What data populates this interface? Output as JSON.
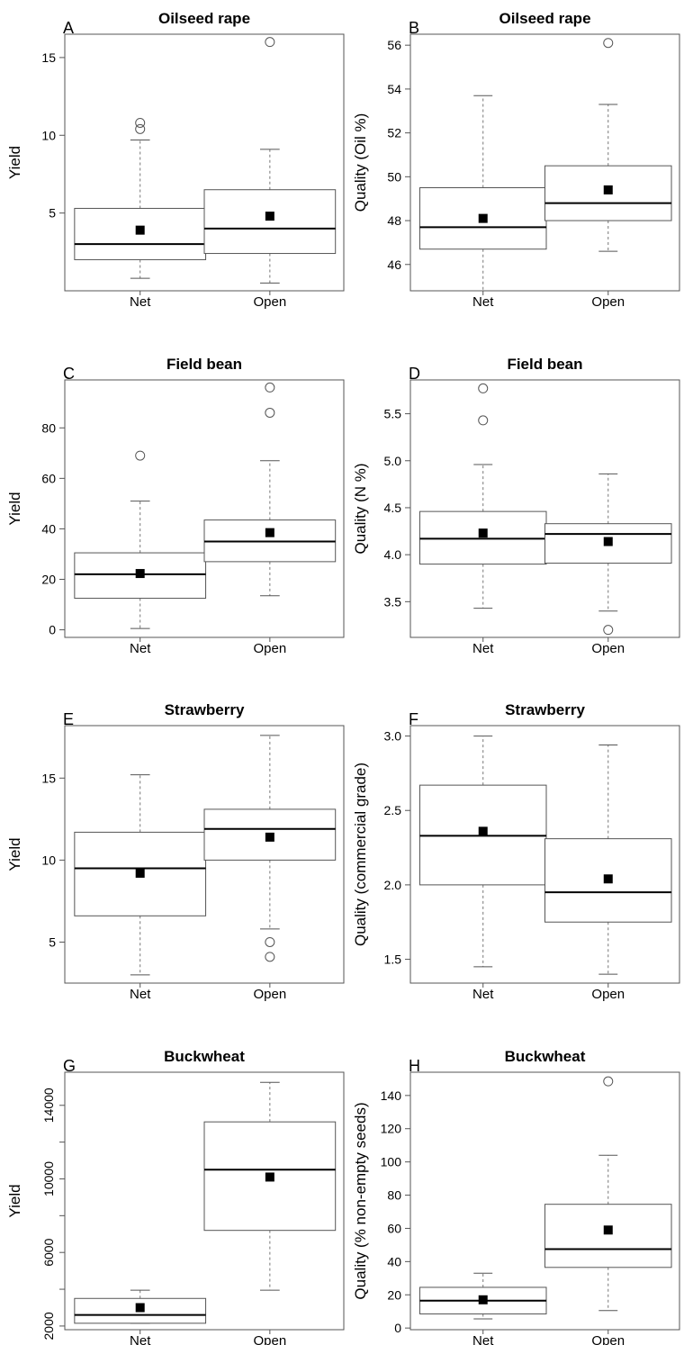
{
  "chart_data": [
    {
      "type": "box",
      "panel_label": "A",
      "title": "Oilseed rape",
      "ylabel": "Yield",
      "ylim": [
        0,
        16.5
      ],
      "yticks": [
        5,
        10,
        15
      ],
      "categories": [
        "Net",
        "Open"
      ],
      "boxes": [
        {
          "whisker_low": 0.8,
          "q1": 2.0,
          "median": 3.0,
          "q3": 5.3,
          "whisker_high": 9.7,
          "mean": 3.9,
          "outliers": [
            10.4,
            10.8
          ]
        },
        {
          "whisker_low": 0.5,
          "q1": 2.4,
          "median": 4.0,
          "q3": 6.5,
          "whisker_high": 9.1,
          "mean": 4.8,
          "outliers": [
            16.0
          ]
        }
      ]
    },
    {
      "type": "box",
      "panel_label": "B",
      "title": "Oilseed rape",
      "ylabel": "Quality (Oil %)",
      "ylim": [
        44.8,
        56.5
      ],
      "yticks": [
        46,
        48,
        50,
        52,
        54,
        56
      ],
      "categories": [
        "Net",
        "Open"
      ],
      "boxes": [
        {
          "whisker_low": 44.8,
          "q1": 46.7,
          "median": 47.7,
          "q3": 49.5,
          "whisker_high": 53.7,
          "mean": 48.1,
          "outliers": []
        },
        {
          "whisker_low": 46.6,
          "q1": 48.0,
          "median": 48.8,
          "q3": 50.5,
          "whisker_high": 53.3,
          "mean": 49.4,
          "outliers": [
            56.1
          ]
        }
      ]
    },
    {
      "type": "box",
      "panel_label": "C",
      "title": "Field bean",
      "ylabel": "Yield",
      "ylim": [
        -3,
        99
      ],
      "yticks": [
        0,
        20,
        40,
        60,
        80
      ],
      "categories": [
        "Net",
        "Open"
      ],
      "boxes": [
        {
          "whisker_low": 0.5,
          "q1": 12.5,
          "median": 22,
          "q3": 30.5,
          "whisker_high": 51,
          "mean": 22.3,
          "outliers": [
            69
          ]
        },
        {
          "whisker_low": 13.5,
          "q1": 27,
          "median": 35,
          "q3": 43.5,
          "whisker_high": 67,
          "mean": 38.5,
          "outliers": [
            86,
            96
          ]
        }
      ]
    },
    {
      "type": "box",
      "panel_label": "D",
      "title": "Field bean",
      "ylabel": "Quality (N %)",
      "ylim": [
        3.12,
        5.86
      ],
      "yticks": [
        3.5,
        4.0,
        4.5,
        5.0,
        5.5
      ],
      "ytick_labels": [
        "3.5",
        "4.0",
        "4.5",
        "5.0",
        "5.5"
      ],
      "categories": [
        "Net",
        "Open"
      ],
      "boxes": [
        {
          "whisker_low": 3.43,
          "q1": 3.9,
          "median": 4.17,
          "q3": 4.46,
          "whisker_high": 4.96,
          "mean": 4.23,
          "outliers": [
            5.43,
            5.77
          ]
        },
        {
          "whisker_low": 3.4,
          "q1": 3.91,
          "median": 4.22,
          "q3": 4.33,
          "whisker_high": 4.86,
          "mean": 4.14,
          "outliers": [
            3.2
          ]
        }
      ]
    },
    {
      "type": "box",
      "panel_label": "E",
      "title": "Strawberry",
      "ylabel": "Yield",
      "ylim": [
        2.5,
        18.2
      ],
      "yticks": [
        5,
        10,
        15
      ],
      "categories": [
        "Net",
        "Open"
      ],
      "boxes": [
        {
          "whisker_low": 3.0,
          "q1": 6.6,
          "median": 9.5,
          "q3": 11.7,
          "whisker_high": 15.2,
          "mean": 9.2,
          "outliers": []
        },
        {
          "whisker_low": 5.8,
          "q1": 10.0,
          "median": 11.9,
          "q3": 13.1,
          "whisker_high": 17.6,
          "mean": 11.4,
          "outliers": [
            4.1,
            5.0
          ]
        }
      ]
    },
    {
      "type": "box",
      "panel_label": "F",
      "title": "Strawberry",
      "ylabel": "Quality (commercial grade)",
      "ylim": [
        1.34,
        3.07
      ],
      "yticks": [
        1.5,
        2.0,
        2.5,
        3.0
      ],
      "ytick_labels": [
        "1.5",
        "2.0",
        "2.5",
        "3.0"
      ],
      "categories": [
        "Net",
        "Open"
      ],
      "boxes": [
        {
          "whisker_low": 1.45,
          "q1": 2.0,
          "median": 2.33,
          "q3": 2.67,
          "whisker_high": 3.0,
          "mean": 2.36,
          "outliers": []
        },
        {
          "whisker_low": 1.4,
          "q1": 1.75,
          "median": 1.95,
          "q3": 2.31,
          "whisker_high": 2.94,
          "mean": 2.04,
          "outliers": []
        }
      ]
    },
    {
      "type": "box",
      "panel_label": "G",
      "title": "Buckwheat",
      "ylabel": "Yield",
      "ylim": [
        1800,
        15800
      ],
      "yticks": [
        2000,
        4000,
        6000,
        8000,
        10000,
        12000,
        14000
      ],
      "ytick_labels": [
        "2000",
        "",
        "6000",
        "",
        "10000",
        "",
        "14000"
      ],
      "categories": [
        "Net",
        "Open"
      ],
      "boxes": [
        {
          "whisker_low": 2150,
          "q1": 2150,
          "median": 2600,
          "q3": 3500,
          "whisker_high": 3950,
          "mean": 3000,
          "outliers": []
        },
        {
          "whisker_low": 3950,
          "q1": 7200,
          "median": 10500,
          "q3": 13100,
          "whisker_high": 15250,
          "mean": 10100,
          "outliers": []
        }
      ]
    },
    {
      "type": "box",
      "panel_label": "H",
      "title": "Buckwheat",
      "ylabel": "Quality (% non-empty seeds)",
      "ylim": [
        -1,
        154
      ],
      "yticks": [
        0,
        20,
        40,
        60,
        80,
        100,
        120,
        140
      ],
      "categories": [
        "Net",
        "Open"
      ],
      "boxes": [
        {
          "whisker_low": 5.5,
          "q1": 8.5,
          "median": 16.5,
          "q3": 24.5,
          "whisker_high": 33,
          "mean": 17,
          "outliers": []
        },
        {
          "whisker_low": 10.5,
          "q1": 36.5,
          "median": 47.5,
          "q3": 74.5,
          "whisker_high": 104,
          "mean": 59,
          "outliers": [
            148.5
          ]
        }
      ]
    }
  ]
}
